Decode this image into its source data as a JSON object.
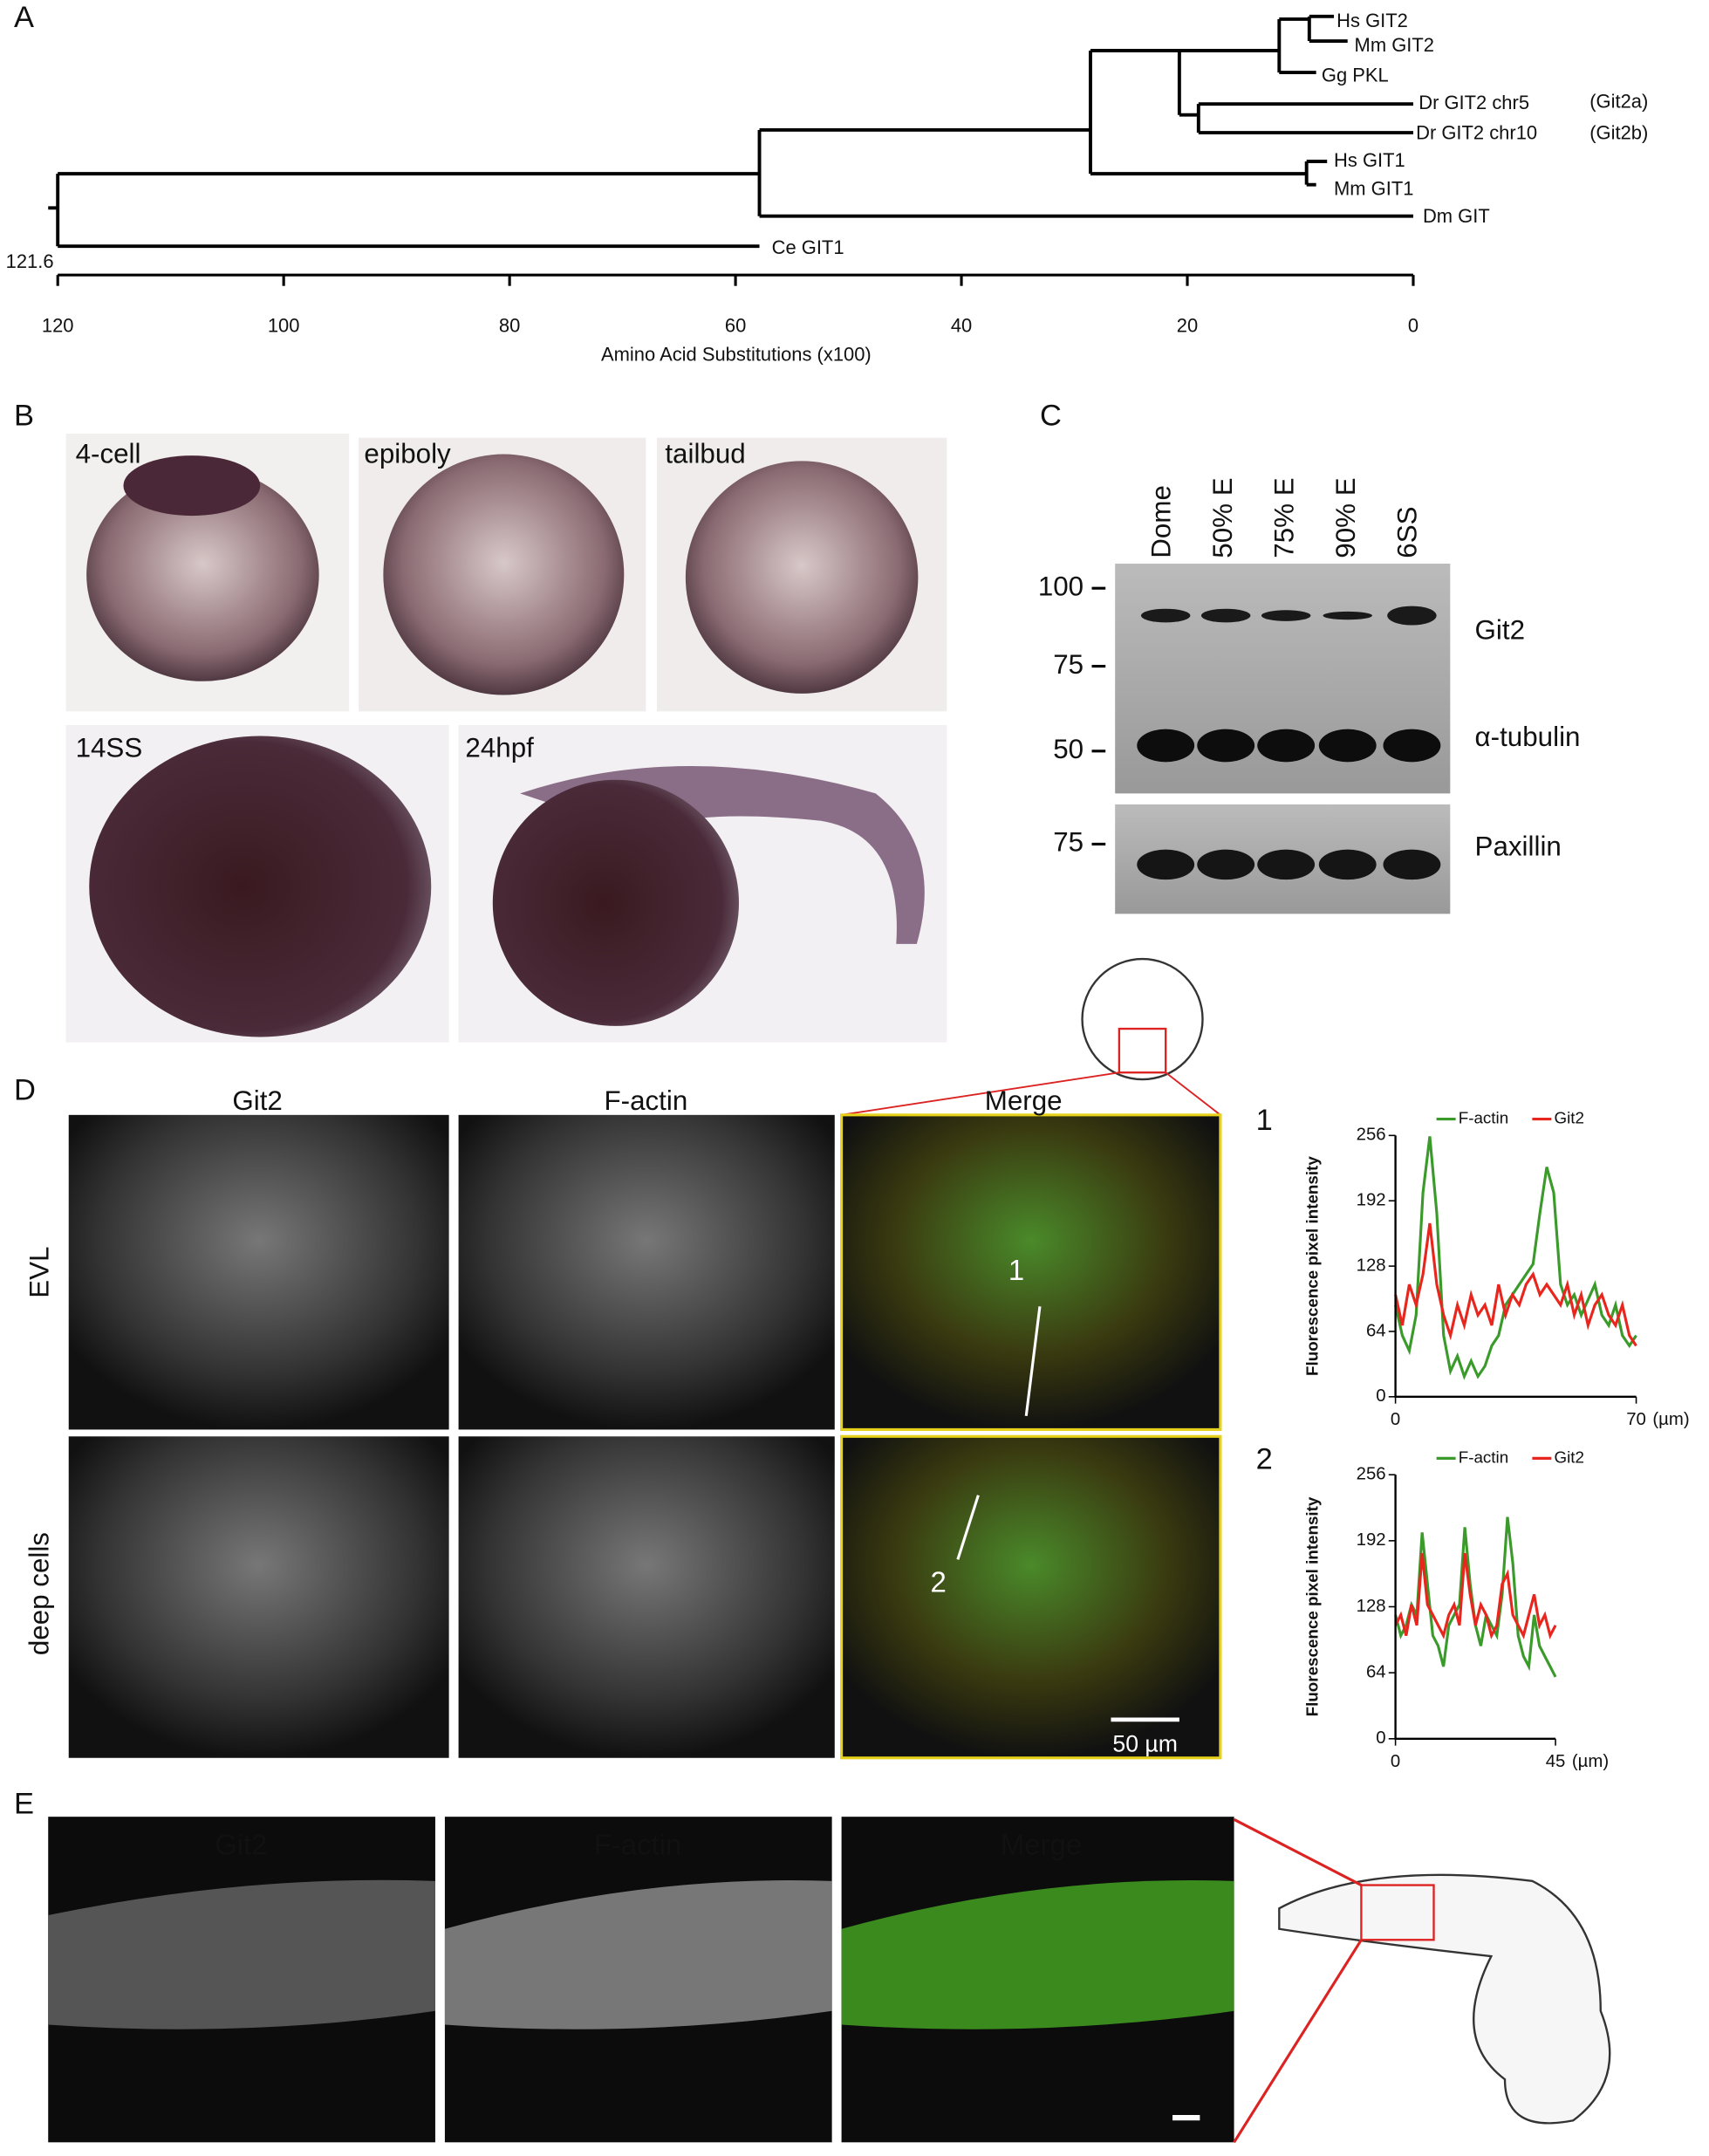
{
  "panel_a": {
    "label": "A",
    "leaves": [
      "Hs GIT2",
      "Mm GIT2",
      "Gg PKL",
      "Dr GIT2 chr5",
      "Dr GIT2 chr10",
      "Hs GIT1",
      "Mm GIT1",
      "Dm GIT",
      "Ce GIT1"
    ],
    "notes": [
      "(Git2a)",
      "(Git2b)"
    ],
    "root_label": "121.6",
    "axis": {
      "xlabel": "Amino Acid Substitutions (x100)",
      "xlim": [
        120,
        0
      ],
      "xticks": [
        120,
        100,
        80,
        60,
        40,
        20,
        0
      ]
    }
  },
  "panel_b": {
    "label": "B",
    "stages": [
      "4-cell",
      "epiboly",
      "tailbud",
      "14SS",
      "24hpf"
    ]
  },
  "panel_c": {
    "label": "C",
    "lanes": [
      "Dome",
      "50% E",
      "75% E",
      "90% E",
      "6SS"
    ],
    "markers": [
      100,
      75,
      50,
      75
    ],
    "bands": [
      "Git2",
      "α-tubulin",
      "Paxillin"
    ]
  },
  "panel_d": {
    "label": "D",
    "columns": [
      "Git2",
      "F-actin",
      "Merge"
    ],
    "rows": [
      "EVL",
      "deep cells"
    ],
    "line_labels": [
      "1",
      "2"
    ],
    "scale_bar": "50 µm"
  },
  "panel_e": {
    "label": "E",
    "columns": [
      "Git2",
      "F-actin",
      "Merge"
    ]
  },
  "chart_data": [
    {
      "type": "line",
      "title": "1",
      "ylabel": "Fluorescence pixel intensity",
      "xunit": "(µm)",
      "xlim": [
        0,
        70
      ],
      "xticks": [
        0,
        70
      ],
      "ylim": [
        0,
        256
      ],
      "yticks": [
        0,
        64,
        128,
        192,
        256
      ],
      "x": [
        0,
        2,
        4,
        6,
        8,
        10,
        12,
        14,
        16,
        18,
        20,
        22,
        24,
        26,
        28,
        30,
        32,
        34,
        36,
        38,
        40,
        42,
        44,
        46,
        48,
        50,
        52,
        54,
        56,
        58,
        60,
        62,
        64,
        66,
        68,
        70
      ],
      "series": [
        {
          "name": "F-actin",
          "color": "#3a9a2a",
          "values": [
            90,
            60,
            45,
            80,
            200,
            255,
            180,
            60,
            25,
            40,
            20,
            35,
            20,
            30,
            50,
            60,
            90,
            100,
            110,
            120,
            130,
            180,
            225,
            200,
            110,
            90,
            100,
            80,
            95,
            110,
            80,
            70,
            90,
            60,
            50,
            60
          ]
        },
        {
          "name": "Git2",
          "color": "#e8261e",
          "values": [
            100,
            70,
            110,
            90,
            120,
            170,
            110,
            80,
            60,
            90,
            70,
            100,
            80,
            90,
            70,
            110,
            80,
            100,
            90,
            110,
            120,
            100,
            110,
            100,
            90,
            110,
            80,
            100,
            70,
            90,
            100,
            80,
            70,
            90,
            60,
            50
          ]
        }
      ]
    },
    {
      "type": "line",
      "title": "2",
      "ylabel": "Fluorescence pixel intensity",
      "xunit": "(µm)",
      "xlim": [
        0,
        45
      ],
      "xticks": [
        0,
        45
      ],
      "ylim": [
        0,
        256
      ],
      "yticks": [
        0,
        64,
        128,
        192,
        256
      ],
      "x": [
        0,
        1.5,
        3,
        4.5,
        6,
        7.5,
        9,
        10.5,
        12,
        13.5,
        15,
        16.5,
        18,
        19.5,
        21,
        22.5,
        24,
        25.5,
        27,
        28.5,
        30,
        31.5,
        33,
        34.5,
        36,
        37.5,
        39,
        40.5,
        42,
        43.5,
        45
      ],
      "series": [
        {
          "name": "F-actin",
          "color": "#3a9a2a",
          "values": [
            120,
            100,
            110,
            130,
            120,
            200,
            150,
            100,
            90,
            70,
            110,
            120,
            130,
            205,
            150,
            110,
            90,
            120,
            110,
            100,
            140,
            215,
            170,
            100,
            80,
            70,
            120,
            90,
            80,
            70,
            60
          ]
        },
        {
          "name": "Git2",
          "color": "#e8261e",
          "values": [
            110,
            120,
            100,
            130,
            110,
            180,
            130,
            120,
            110,
            100,
            120,
            130,
            110,
            180,
            140,
            110,
            130,
            120,
            100,
            110,
            150,
            160,
            120,
            110,
            100,
            120,
            140,
            110,
            120,
            100,
            110
          ]
        }
      ]
    }
  ]
}
